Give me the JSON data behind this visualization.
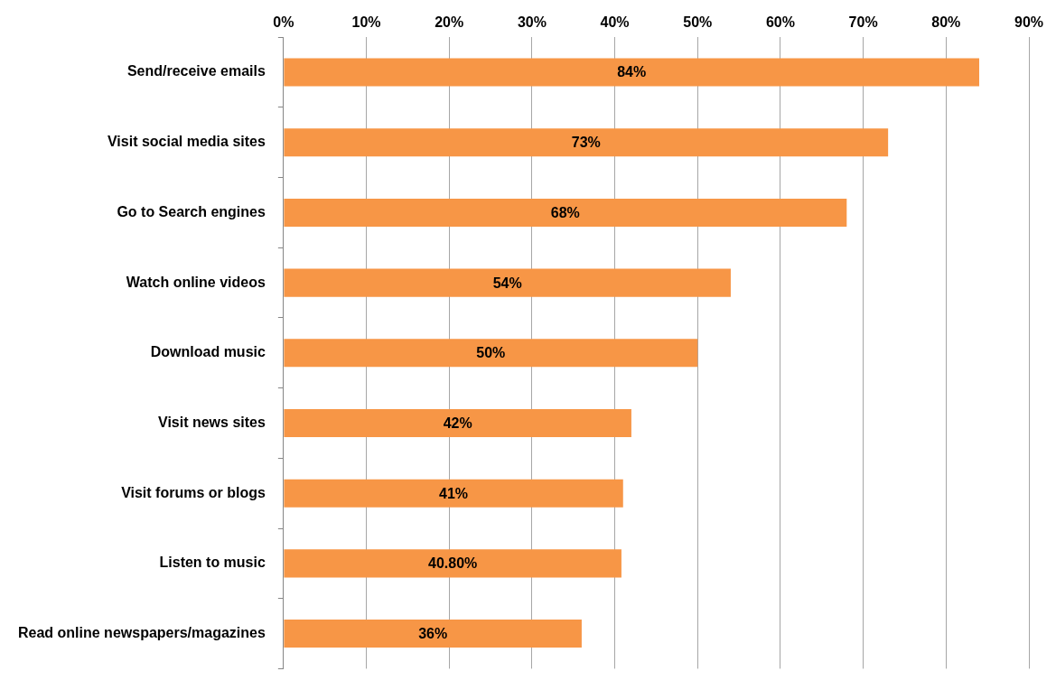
{
  "chart_data": {
    "type": "bar",
    "orientation": "horizontal",
    "categories": [
      "Send/receive emails",
      "Visit social media sites",
      "Go to Search engines",
      "Watch online videos",
      "Download music",
      "Visit news sites",
      "Visit forums or blogs",
      "Listen to music",
      "Read online newspapers/magazines"
    ],
    "values": [
      84,
      73,
      68,
      54,
      50,
      42,
      41,
      40.8,
      36
    ],
    "value_labels": [
      "84%",
      "73%",
      "68%",
      "54%",
      "50%",
      "42%",
      "41%",
      "40.80%",
      "36%"
    ],
    "color": "#f79646",
    "xlim": [
      0,
      90
    ],
    "xticks": [
      {
        "value": 0,
        "label": "0%"
      },
      {
        "value": 10,
        "label": "10%"
      },
      {
        "value": 20,
        "label": "20%"
      },
      {
        "value": 30,
        "label": "30%"
      },
      {
        "value": 40,
        "label": "40%"
      },
      {
        "value": 50,
        "label": "50%"
      },
      {
        "value": 60,
        "label": "60%"
      },
      {
        "value": 70,
        "label": "70%"
      },
      {
        "value": 80,
        "label": "80%"
      },
      {
        "value": 90,
        "label": "90%"
      }
    ],
    "grid": "x",
    "legend": false
  }
}
